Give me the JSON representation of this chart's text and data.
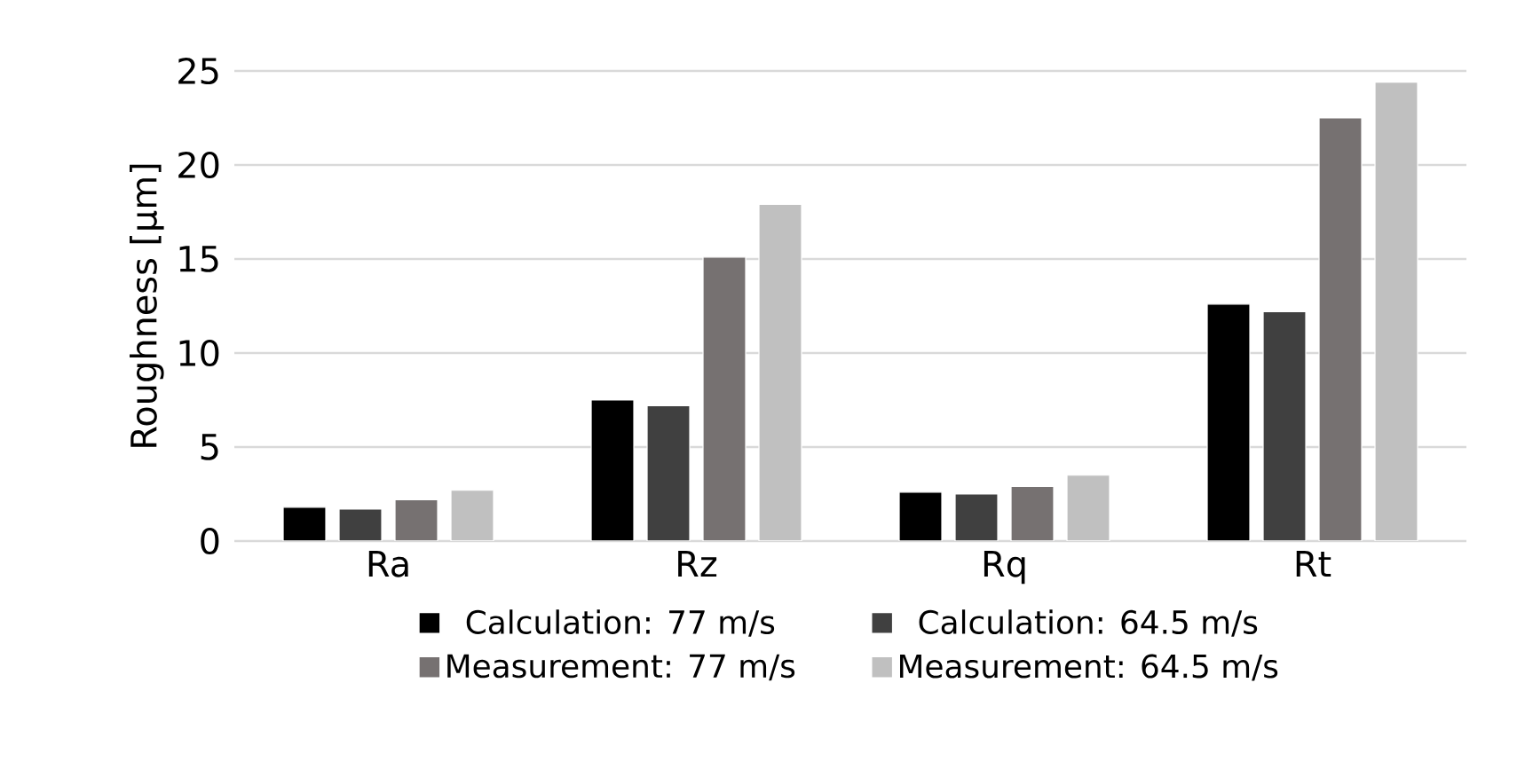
{
  "chart_data": {
    "type": "bar",
    "ylabel": "Roughness [µm]",
    "categories": [
      "Ra",
      "Rz",
      "Rq",
      "Rt"
    ],
    "series": [
      {
        "name": "Calculation: 77 m/s",
        "color": "#000000",
        "values": [
          1.8,
          7.5,
          2.6,
          12.6
        ]
      },
      {
        "name": "Calculation: 64.5 m/s",
        "color": "#404040",
        "values": [
          1.7,
          7.2,
          2.5,
          12.2
        ]
      },
      {
        "name": "Measurement: 77 m/s",
        "color": "#767171",
        "values": [
          2.2,
          15.1,
          2.9,
          22.5
        ]
      },
      {
        "name": "Measurement: 64.5 m/s",
        "color": "#c0c0c0",
        "values": [
          2.7,
          17.9,
          3.5,
          24.4
        ]
      }
    ],
    "ylim": [
      0,
      25
    ],
    "yticks": [
      0,
      5,
      10,
      15,
      20,
      25
    ],
    "grid": "y",
    "legend": "bottom"
  }
}
